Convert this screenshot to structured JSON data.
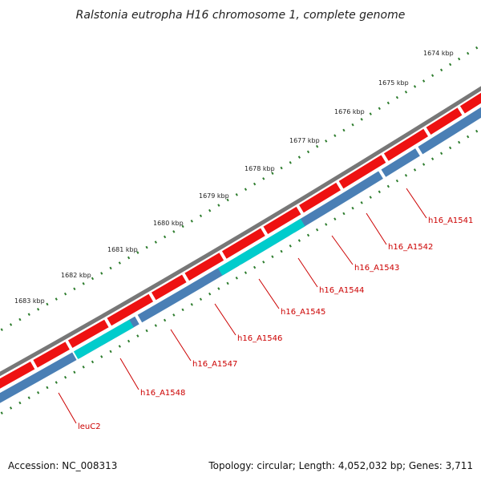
{
  "title": "Ralstonia eutropha H16 chromosome 1, complete genome",
  "footer": {
    "accession": "Accession: NC_008313",
    "topology": "Topology: circular; Length: 4,052,032 bp; Genes: 3,711"
  },
  "colors": {
    "backbone": "#777777",
    "forward_gene": "#ee1111",
    "reverse_gene": "#4a7fb5",
    "highlight_gene": "#00cccc",
    "ruler_tick": "#2e7d2e",
    "label": "#cc0000"
  },
  "ruler_labels": [
    "1674 kbp",
    "1675 kbp",
    "1676 kbp",
    "1677 kbp",
    "1678 kbp",
    "1679 kbp",
    "1680 kbp",
    "1681 kbp",
    "1682 kbp",
    "1683 kbp"
  ],
  "gene_labels": [
    "h16_A1541",
    "h16_A1542",
    "h16_A1543",
    "h16_A1544",
    "h16_A1545",
    "h16_A1546",
    "h16_A1547",
    "h16_A1548",
    "leuC2"
  ]
}
